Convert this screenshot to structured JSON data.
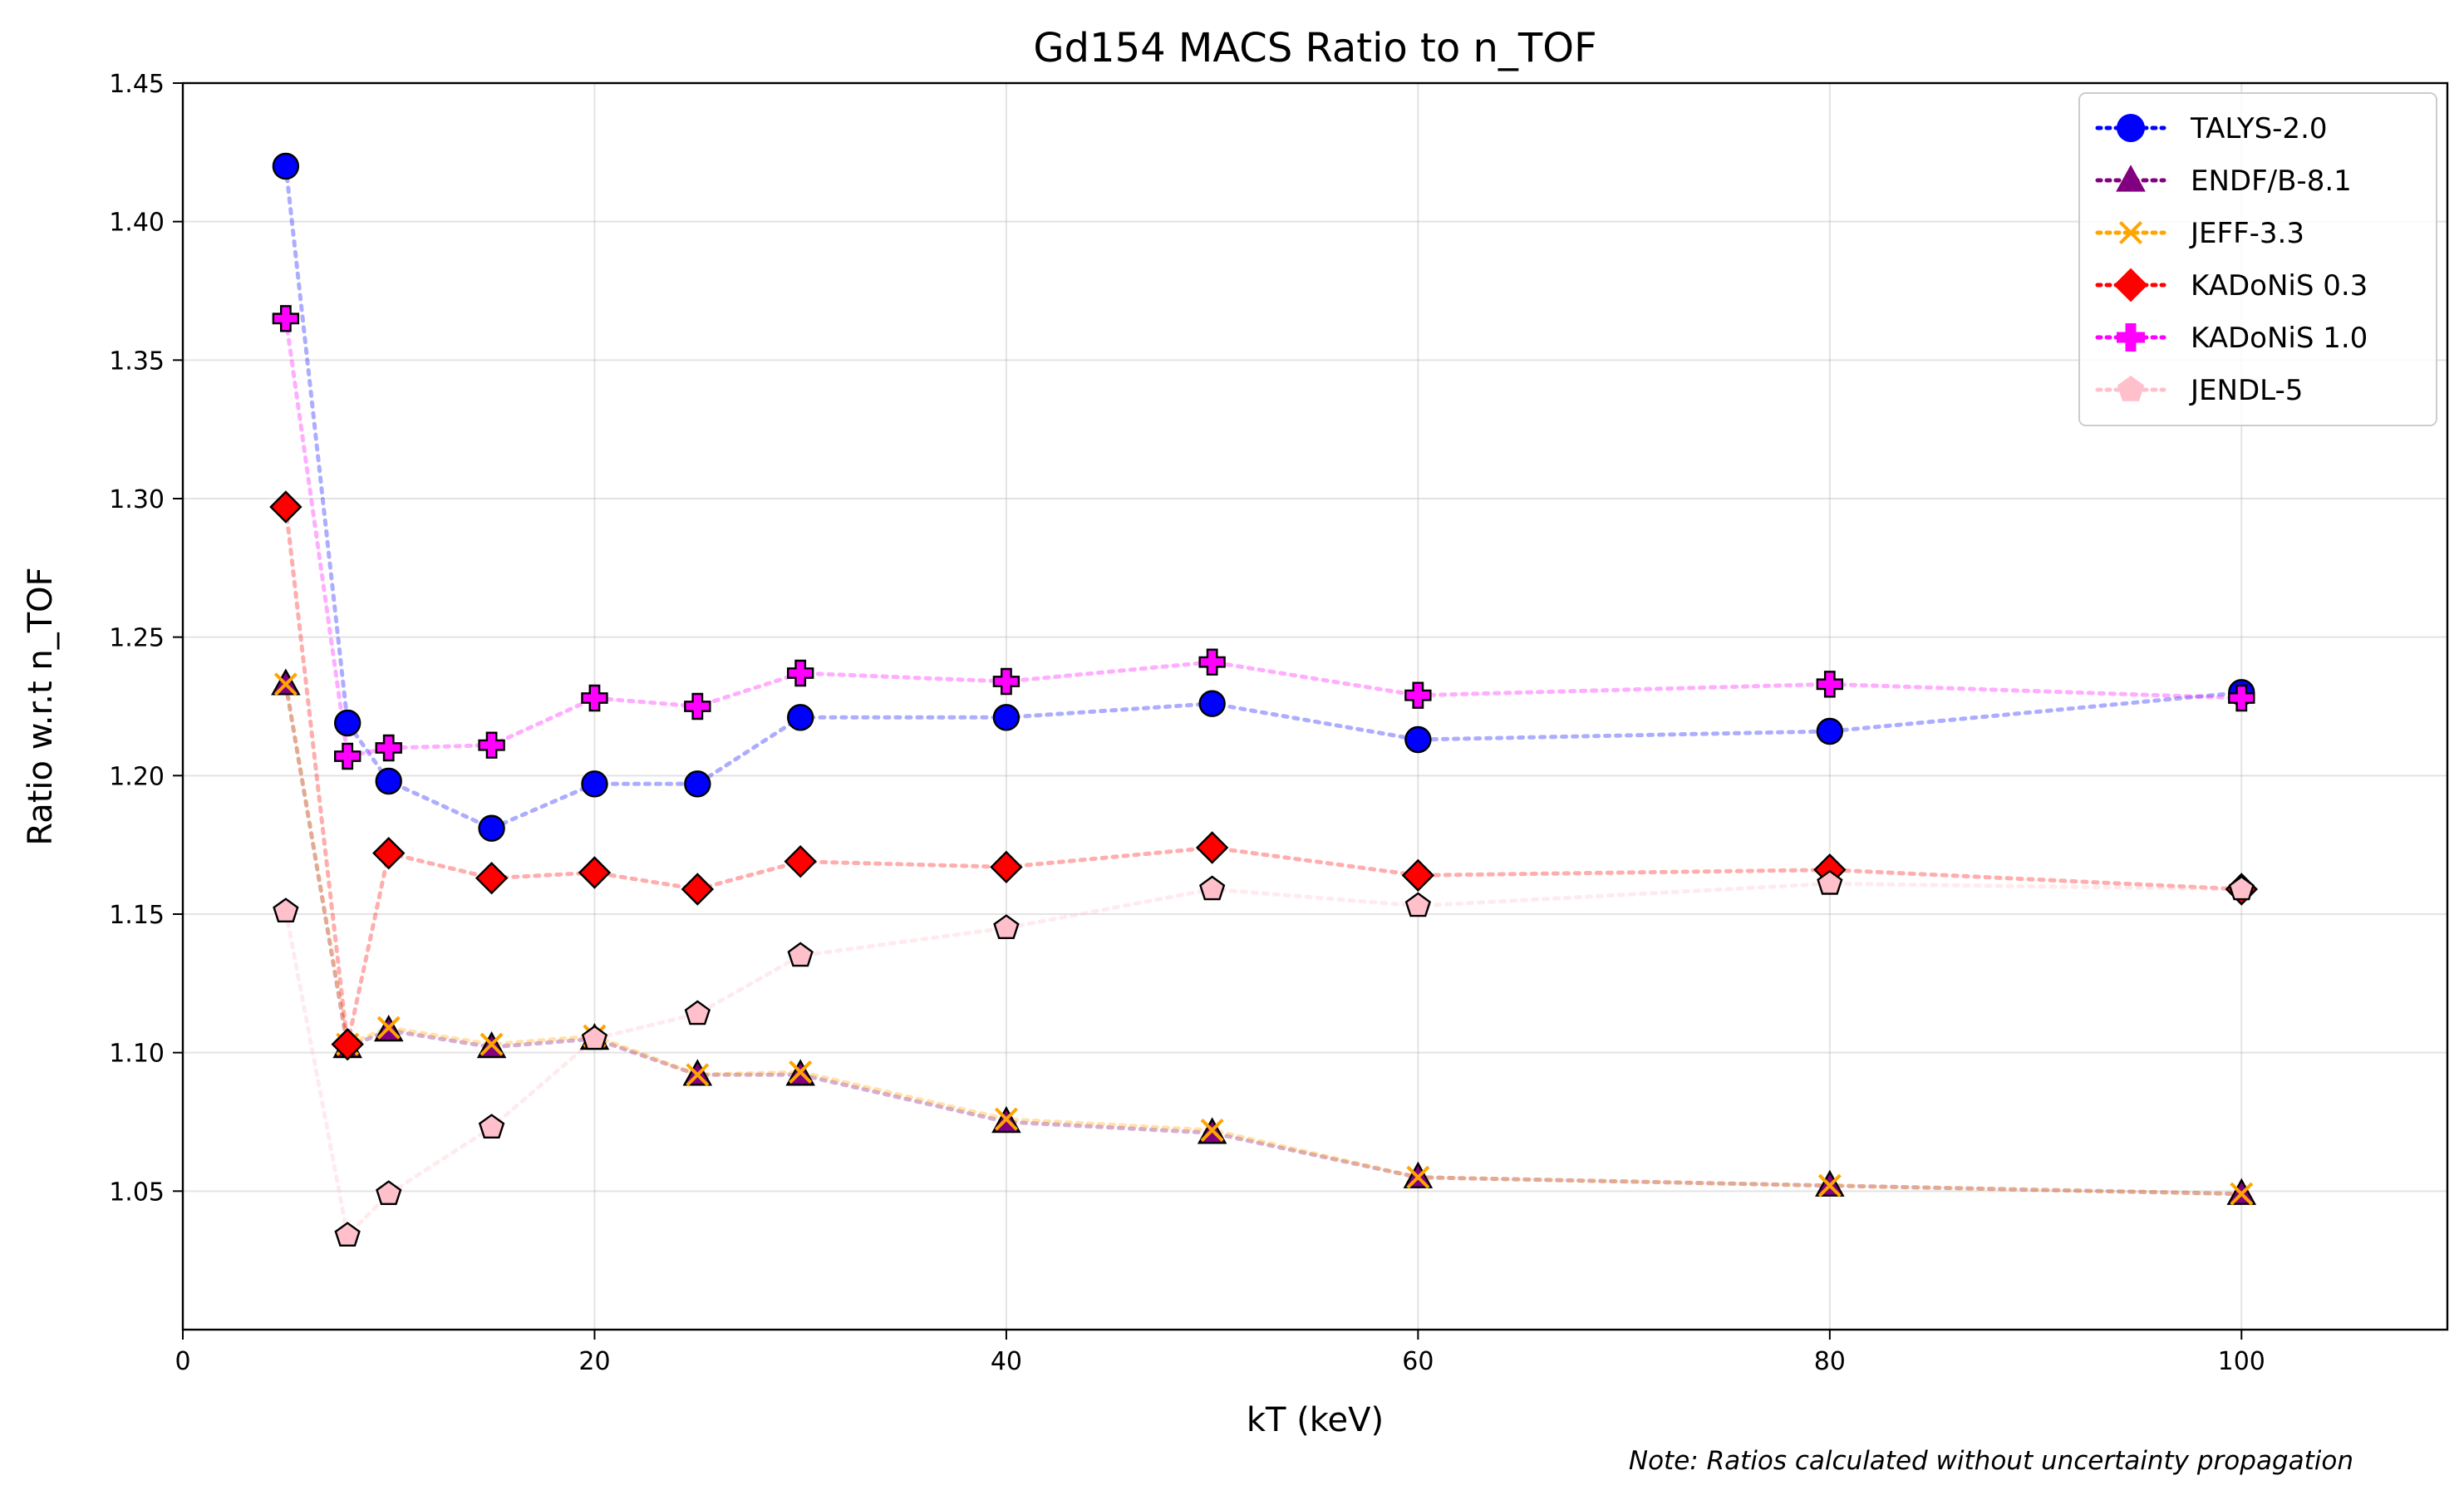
{
  "chart_data": {
    "type": "line",
    "title": "Gd154 MACS Ratio to n_TOF",
    "xlabel": "kT (keV)",
    "ylabel": "Ratio w.r.t n_TOF",
    "xlim": [
      0,
      110
    ],
    "ylim": [
      1.0,
      1.45
    ],
    "x_ticks": [
      0,
      20,
      40,
      60,
      80,
      100
    ],
    "y_ticks": [
      1.05,
      1.1,
      1.15,
      1.2,
      1.25,
      1.3,
      1.35,
      1.4,
      1.45
    ],
    "grid": true,
    "legend_position": "top-right",
    "note": "Note: Ratios calculated without uncertainty propagation",
    "x": [
      5,
      8,
      10,
      15,
      20,
      25,
      30,
      40,
      50,
      60,
      80,
      100
    ],
    "series": [
      {
        "name": "TALYS-2.0",
        "color": "#0000ff",
        "marker": "circle",
        "values": [
          1.42,
          1.219,
          1.198,
          1.181,
          1.197,
          1.197,
          1.221,
          1.221,
          1.226,
          1.213,
          1.216,
          1.23
        ]
      },
      {
        "name": "ENDF/B-8.1",
        "color": "#800080",
        "marker": "triangle",
        "values": [
          1.233,
          1.102,
          1.108,
          1.102,
          1.105,
          1.092,
          1.092,
          1.075,
          1.071,
          1.055,
          1.052,
          1.049
        ]
      },
      {
        "name": "JEFF-3.3",
        "color": "#ffa500",
        "marker": "x",
        "values": [
          1.233,
          1.103,
          1.109,
          1.103,
          1.106,
          1.092,
          1.093,
          1.076,
          1.072,
          1.055,
          1.052,
          1.049
        ]
      },
      {
        "name": "KADoNiS 0.3",
        "color": "#ff0000",
        "marker": "diamond",
        "values": [
          1.297,
          1.103,
          1.172,
          1.163,
          1.165,
          1.159,
          1.169,
          1.167,
          1.174,
          1.164,
          1.166,
          1.159
        ]
      },
      {
        "name": "KADoNiS 1.0",
        "color": "#ff00ff",
        "marker": "plus",
        "values": [
          1.365,
          1.207,
          1.21,
          1.211,
          1.228,
          1.225,
          1.237,
          1.234,
          1.241,
          1.229,
          1.233,
          1.228
        ]
      },
      {
        "name": "JENDL-5",
        "color": "#ffc0cb",
        "marker": "pentagon",
        "values": [
          1.151,
          1.034,
          1.049,
          1.073,
          1.105,
          1.114,
          1.135,
          1.145,
          1.159,
          1.153,
          1.161,
          1.159
        ]
      }
    ]
  }
}
